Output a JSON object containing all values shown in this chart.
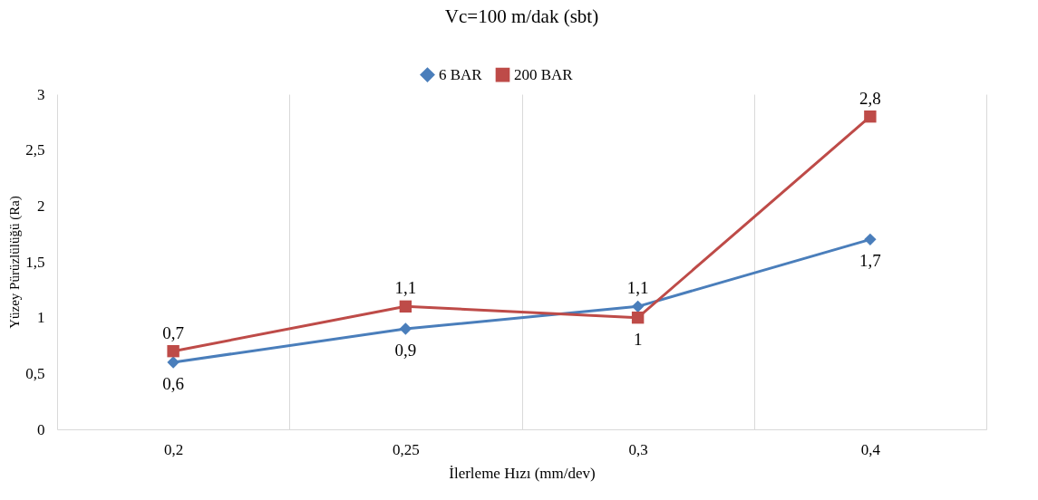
{
  "chart_data": {
    "type": "line",
    "title": "Vc=100 m/dak (sbt)",
    "xlabel": "İlerleme  Hızı  (mm/dev)",
    "ylabel": "Yüzey Pürüzlülüğü (Ra)",
    "categories": [
      "0,2",
      "0,25",
      "0,3",
      "0,4"
    ],
    "series": [
      {
        "name": "6 BAR",
        "color": "#4a7ebb",
        "marker": "diamond",
        "values": [
          0.6,
          0.9,
          1.1,
          1.7
        ],
        "value_labels": [
          "0,6",
          "0,9",
          "1,1",
          "1,7"
        ]
      },
      {
        "name": "200 BAR",
        "color": "#be4b48",
        "marker": "square",
        "values": [
          0.7,
          1.1,
          1.0,
          2.8
        ],
        "value_labels": [
          "0,7",
          "1,1",
          "1",
          "2,8"
        ]
      }
    ],
    "ylim": [
      0,
      3
    ],
    "yticks": [
      0,
      {
        "value": 0.5,
        "label": "0,5"
      },
      1,
      {
        "value": 1.5,
        "label": "1,5"
      },
      2,
      {
        "value": 2.5,
        "label": "2,5"
      },
      3
    ],
    "grid": "x",
    "legend": "top"
  }
}
